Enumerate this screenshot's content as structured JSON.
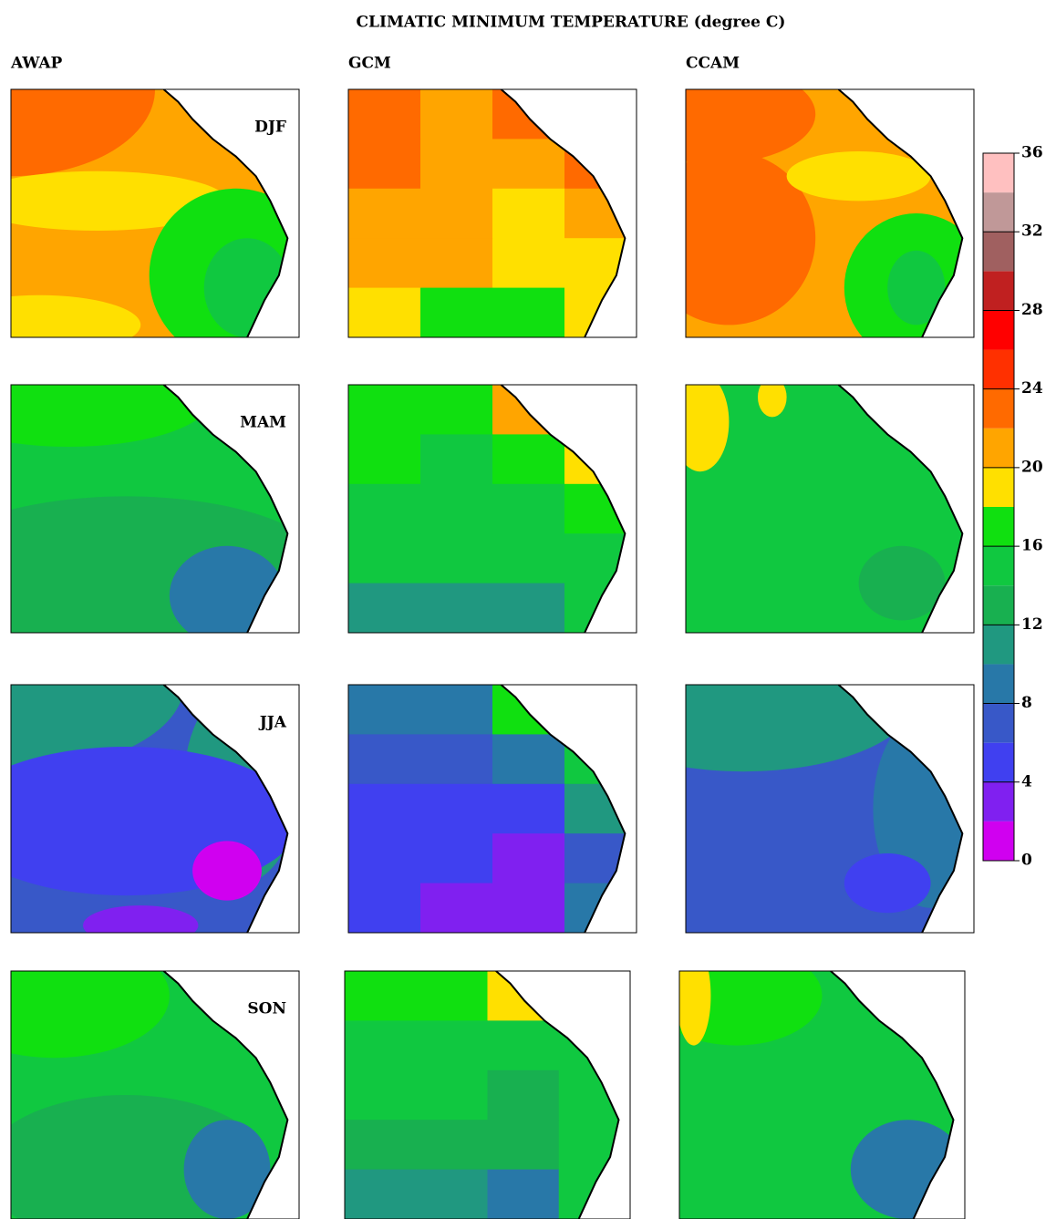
{
  "title": "CLIMATIC MINIMUM TEMPERATURE (degree C)",
  "columns": [
    "AWAP",
    "GCM",
    "CCAM"
  ],
  "seasons": [
    "DJF",
    "MAM",
    "JJA",
    "SON"
  ],
  "colorbar": {
    "lim": [
      0,
      36
    ],
    "ticks": [
      0,
      4,
      8,
      12,
      16,
      20,
      24,
      28,
      32,
      36
    ],
    "colors": [
      "#d000f0",
      "#8020f0",
      "#4040f0",
      "#3858c8",
      "#2878a8",
      "#209880",
      "#18b050",
      "#10c840",
      "#10e010",
      "#ffe000",
      "#ffa500",
      "#ff6a00",
      "#ff3000",
      "#ff0000",
      "#c02020",
      "#a06060",
      "#c09898",
      "#ffc0c0"
    ]
  }
}
